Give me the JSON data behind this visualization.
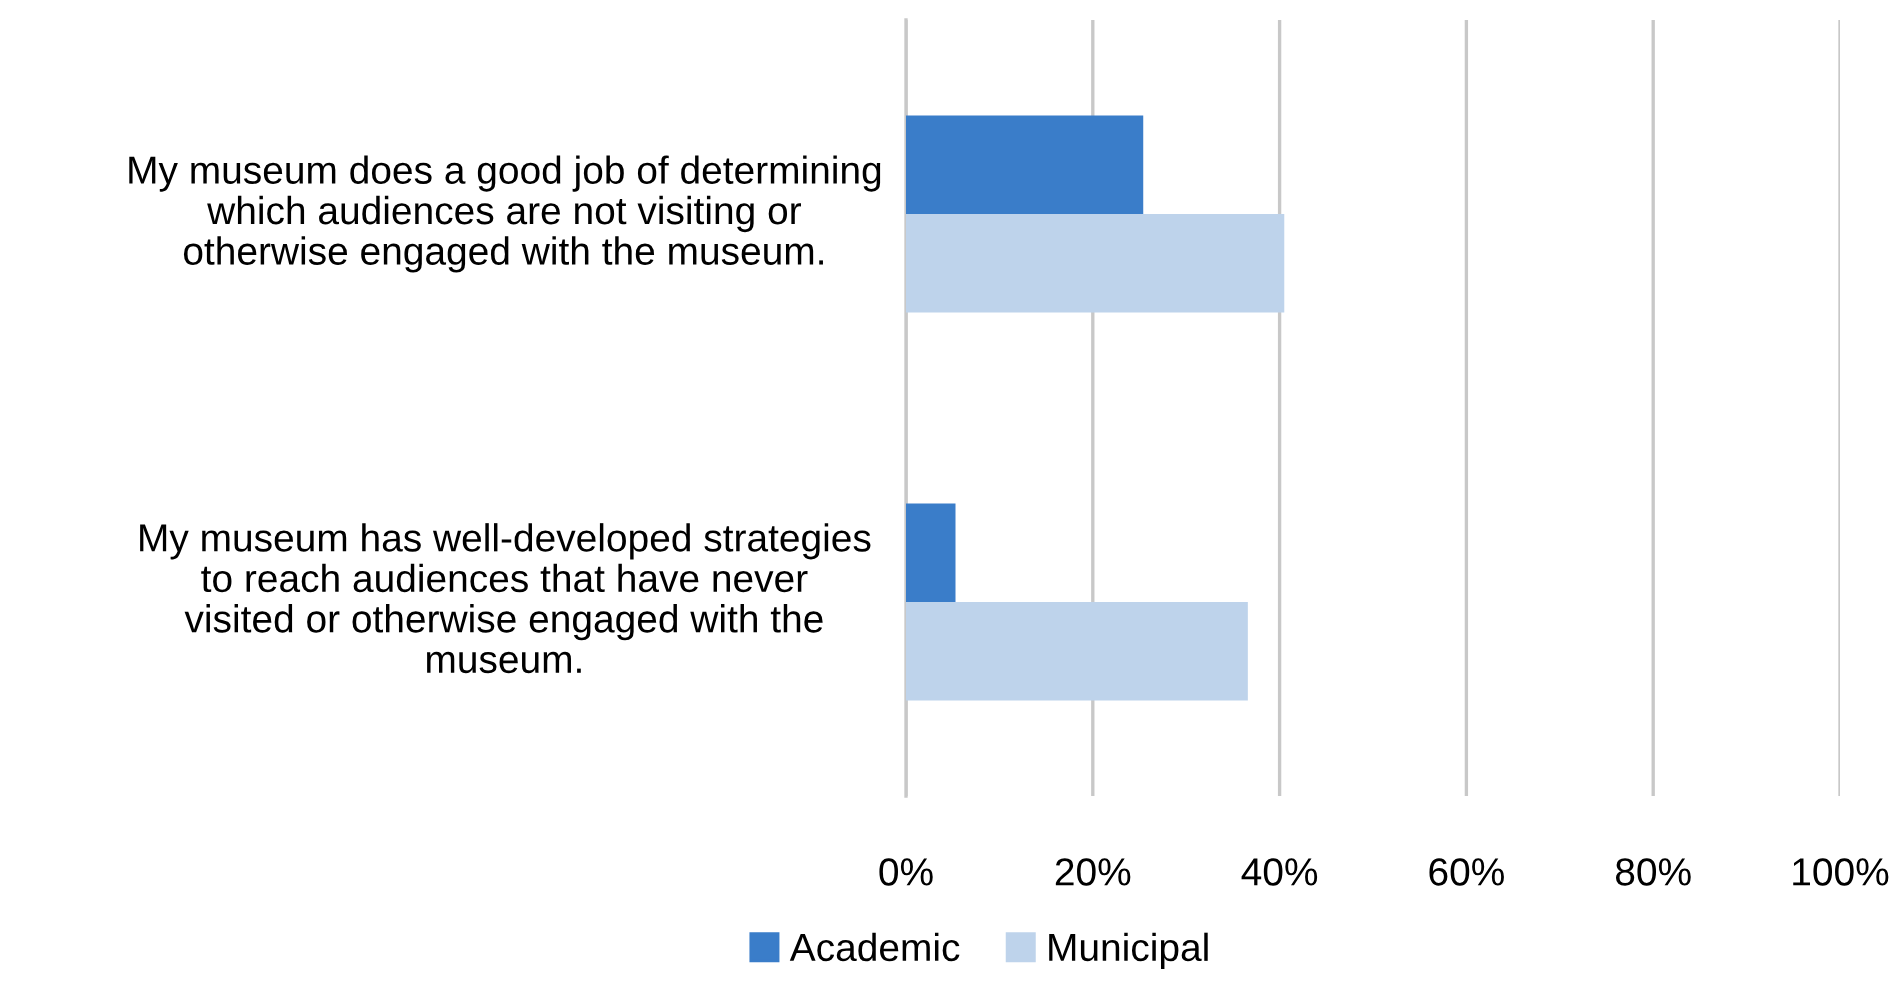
{
  "chart_data": {
    "type": "bar",
    "orientation": "horizontal",
    "categories": [
      "My museum does a good job of determining which audiences are not visiting or otherwise engaged with the museum.",
      "My museum has well-developed strategies to reach audiences that have never visited or otherwise engaged with the museum."
    ],
    "series": [
      {
        "name": "Academic",
        "color": "#3a7dc9",
        "values": [
          25.4,
          5.3
        ]
      },
      {
        "name": "Municipal",
        "color": "#bed3eb",
        "values": [
          40.5,
          36.6
        ]
      }
    ],
    "xlim": [
      0,
      100
    ],
    "xticks": [
      {
        "value": 0,
        "label": "0%"
      },
      {
        "value": 20,
        "label": "20%"
      },
      {
        "value": 40,
        "label": "40%"
      },
      {
        "value": 60,
        "label": "60%"
      },
      {
        "value": 80,
        "label": "80%"
      },
      {
        "value": 100,
        "label": "100%"
      }
    ],
    "grid": "x",
    "legend": "bottom"
  }
}
